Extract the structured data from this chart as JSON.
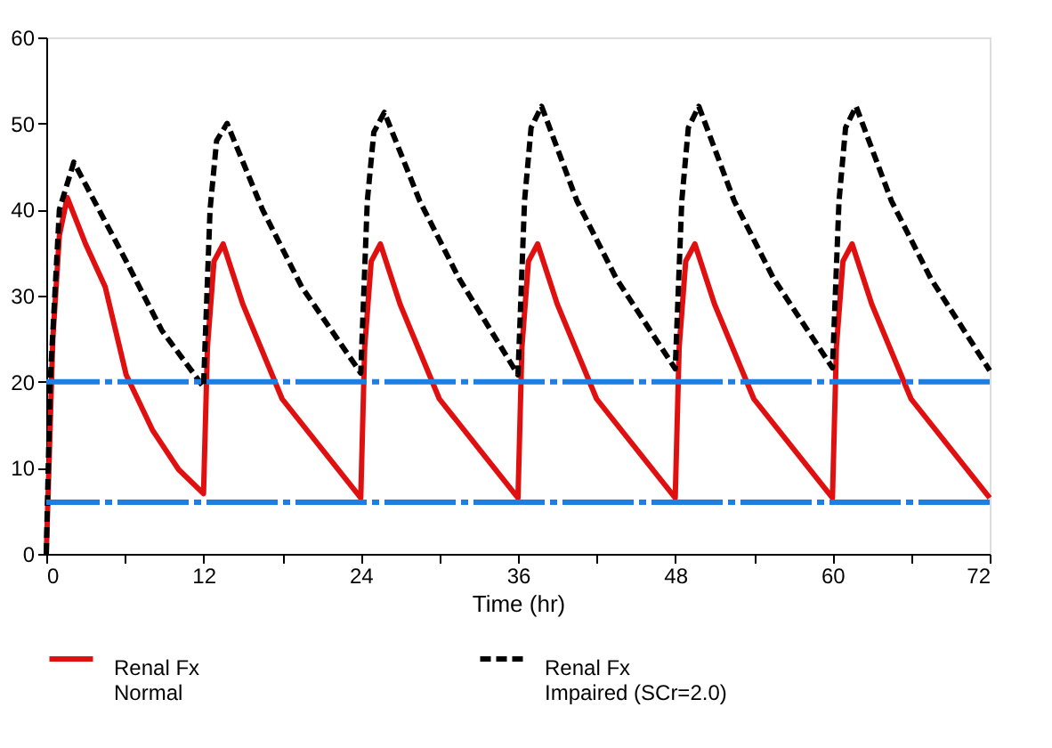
{
  "chart_data": {
    "type": "line",
    "xlabel": "Time (hr)",
    "xlim": [
      0,
      72
    ],
    "ylim": [
      0,
      60
    ],
    "xticks": [
      0,
      {
        "value": 6,
        "label": null
      },
      12,
      {
        "value": 18,
        "label": null
      },
      24,
      {
        "value": 30,
        "label": null
      },
      36,
      {
        "value": 42,
        "label": null
      },
      48,
      {
        "value": 54,
        "label": null
      },
      60,
      {
        "value": 66,
        "label": null
      },
      72
    ],
    "yticks": [
      0,
      10,
      20,
      30,
      40,
      50,
      60
    ],
    "grid": false,
    "legend": "bottom",
    "marker": "none",
    "series": [
      {
        "name": "Renal Fx\nNormal",
        "color": "#e01010",
        "line_style": "solid",
        "x": [
          0,
          0.5,
          1,
          1.6,
          3,
          4.5,
          6.1,
          8.1,
          10.1,
          12,
          12.3,
          12.8,
          13.5,
          15,
          18,
          24,
          24.3,
          24.8,
          25.5,
          27,
          30,
          36,
          36.3,
          36.8,
          37.5,
          39,
          42,
          48,
          48.3,
          48.8,
          49.5,
          51,
          54,
          60,
          60.3,
          60.8,
          61.5,
          63,
          66,
          72
        ],
        "values": [
          0,
          25,
          37,
          41.4,
          36,
          31,
          20.8,
          14.4,
          9.8,
          7,
          24,
          34,
          36,
          29,
          18,
          6.5,
          24,
          34,
          36,
          29,
          18,
          6.5,
          24,
          34,
          36,
          29,
          18,
          6.5,
          24,
          34,
          36,
          29,
          18,
          6.5,
          24,
          34,
          36,
          29,
          18,
          6.5
        ]
      },
      {
        "name": "Renal Fx\nImpaired (SCr=2.0)",
        "color": "#000000",
        "line_style": "dashed",
        "x": [
          0,
          0.3,
          1,
          2.1,
          6.1,
          8.8,
          12,
          12.5,
          13,
          13.8,
          16.5,
          19.5,
          24,
          24.5,
          25,
          25.8,
          28.5,
          31.5,
          36,
          36.5,
          37,
          37.8,
          40.5,
          43.5,
          48,
          48.5,
          49,
          49.8,
          52.5,
          55.5,
          60,
          60.5,
          61,
          61.8,
          64.5,
          67.5,
          72
        ],
        "values": [
          0,
          20,
          40,
          45.5,
          34,
          26,
          19.4,
          40,
          48,
          50,
          40,
          31,
          21,
          41,
          49,
          51.3,
          41,
          32,
          20.8,
          41,
          49.5,
          52,
          41,
          32,
          21.5,
          41,
          49.5,
          52,
          41,
          32,
          21.6,
          41,
          49.5,
          52,
          41,
          32,
          21.3
        ]
      }
    ],
    "ref_lines": [
      {
        "axis": "y",
        "value": 20,
        "label": null,
        "color": "#1e7fe0",
        "line_style": "dashed"
      },
      {
        "axis": "y",
        "value": 6,
        "label": null,
        "color": "#1e7fe0",
        "line_style": "dashed"
      }
    ]
  }
}
